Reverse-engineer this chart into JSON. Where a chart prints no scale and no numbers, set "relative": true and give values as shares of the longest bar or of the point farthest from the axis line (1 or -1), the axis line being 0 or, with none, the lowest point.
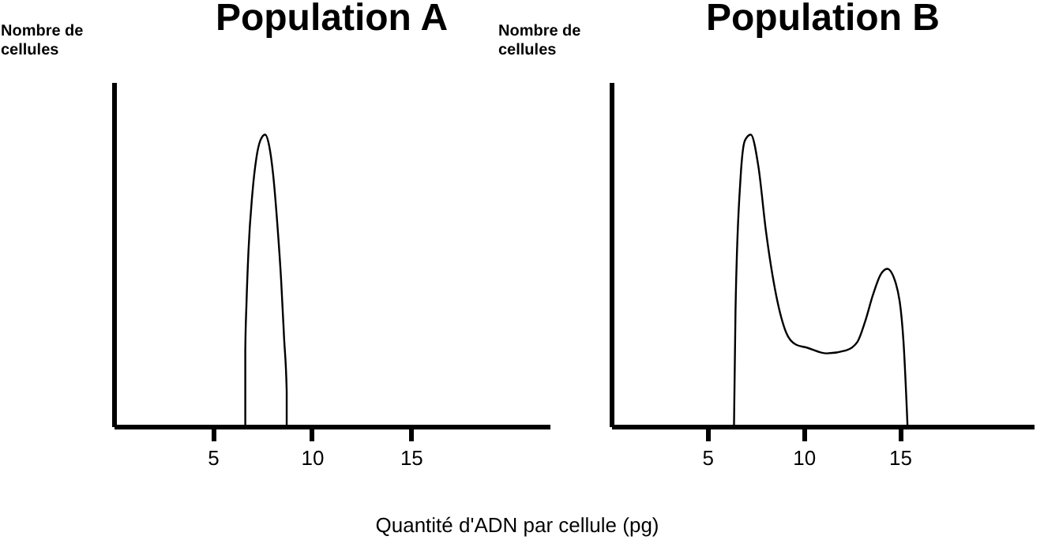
{
  "chart_data": [
    {
      "type": "line",
      "title": "Population A",
      "ylabel": "Nombre de cellules",
      "xlabel": "Quantité d'ADN par cellule (pg)",
      "relative": true,
      "color": "#000000",
      "xlim": [
        0,
        22
      ],
      "xticks": [
        5,
        10,
        15
      ],
      "x": [
        6.64,
        6.64,
        6.7,
        6.8,
        7.0,
        7.2,
        7.4,
        7.64,
        7.85,
        8.05,
        8.25,
        8.45,
        8.6,
        8.73,
        8.73
      ],
      "values": [
        0,
        0.26,
        0.42,
        0.6,
        0.8,
        0.92,
        0.98,
        1,
        0.96,
        0.86,
        0.7,
        0.5,
        0.3,
        0.12,
        0
      ]
    },
    {
      "type": "line",
      "title": "Population B",
      "ylabel": "Nombre de cellules",
      "relative": true,
      "color": "#000000",
      "xlim": [
        0,
        22
      ],
      "xticks": [
        5,
        10,
        15
      ],
      "x": [
        6.38,
        6.46,
        6.72,
        6.95,
        7.25,
        7.65,
        8.04,
        8.57,
        9.1,
        9.6,
        10.16,
        11.2,
        12.2,
        12.8,
        13.2,
        13.6,
        14.0,
        14.34,
        14.79,
        15.19,
        15.4
      ],
      "values": [
        0,
        0.4,
        0.85,
        0.98,
        1,
        0.89,
        0.67,
        0.45,
        0.32,
        0.28,
        0.27,
        0.25,
        0.26,
        0.29,
        0.36,
        0.45,
        0.52,
        0.54,
        0.49,
        0.29,
        0
      ]
    }
  ]
}
